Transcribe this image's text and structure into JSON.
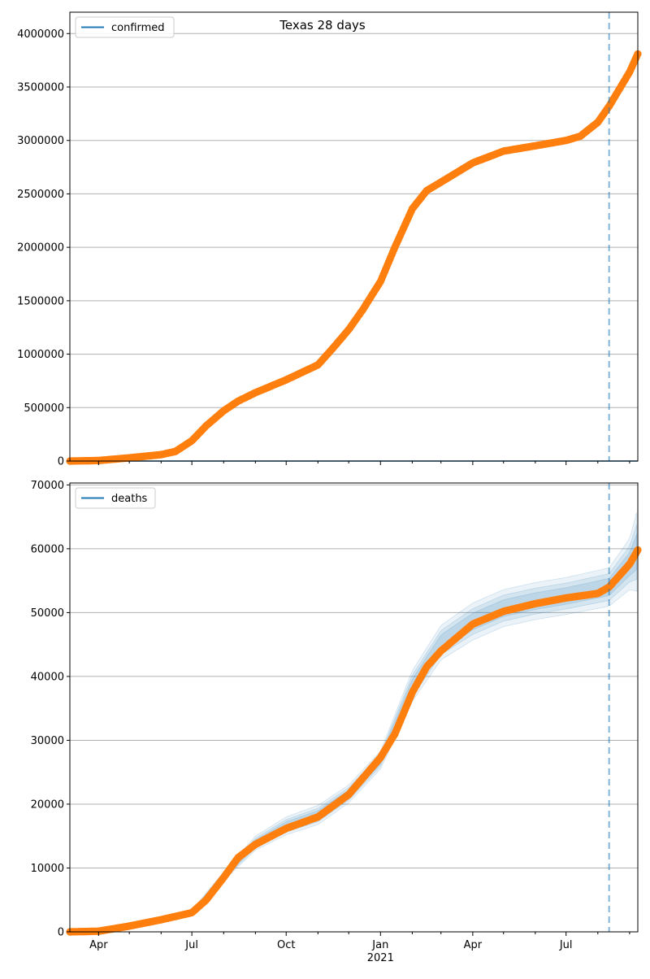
{
  "figure_title": "Texas 28 days",
  "colors": {
    "observed": "#ff7f0e",
    "model_line": "#1f77b4",
    "band": "#1f77b4",
    "grid": "#b0b0b0",
    "cutoff": "#1f77b4"
  },
  "x_axis": {
    "tick_labels": [
      "Apr",
      "Jul",
      "Oct",
      "Jan",
      "Apr",
      "Jul"
    ],
    "tick_dates": [
      "2020-04-01",
      "2020-07-01",
      "2020-10-01",
      "2021-01-01",
      "2021-04-01",
      "2021-07-01"
    ],
    "year_label": "2021",
    "range": [
      "2020-03-04",
      "2021-09-09"
    ],
    "cutoff_date": "2021-08-12"
  },
  "chart_data": [
    {
      "type": "line",
      "legend": "confirmed",
      "legend_position": "top-left",
      "grid": "horizontal",
      "ylim": [
        0,
        4200000
      ],
      "yticks": [
        "0",
        "500000",
        "1000000",
        "1500000",
        "2000000",
        "2500000",
        "3000000",
        "3500000",
        "4000000"
      ],
      "ytick_values": [
        0,
        500000,
        1000000,
        1500000,
        2000000,
        2500000,
        3000000,
        3500000,
        4000000
      ],
      "observed": {
        "x": [
          "2020-03-04",
          "2020-04-01",
          "2020-05-01",
          "2020-06-01",
          "2020-06-15",
          "2020-07-01",
          "2020-07-15",
          "2020-08-01",
          "2020-08-15",
          "2020-09-01",
          "2020-10-01",
          "2020-11-01",
          "2020-11-15",
          "2020-12-01",
          "2020-12-15",
          "2021-01-01",
          "2021-01-15",
          "2021-02-01",
          "2021-02-15",
          "2021-03-01",
          "2021-04-01",
          "2021-05-01",
          "2021-06-01",
          "2021-07-01",
          "2021-07-15",
          "2021-08-01",
          "2021-08-12",
          "2021-09-01",
          "2021-09-09"
        ],
        "y": [
          0,
          5000,
          30000,
          60000,
          90000,
          190000,
          330000,
          470000,
          560000,
          640000,
          760000,
          900000,
          1050000,
          1230000,
          1420000,
          1680000,
          2000000,
          2360000,
          2530000,
          2610000,
          2790000,
          2900000,
          2950000,
          3000000,
          3040000,
          3170000,
          3320000,
          3640000,
          3810000
        ]
      },
      "model": {
        "x": [
          "2020-03-04",
          "2021-09-09"
        ],
        "y": [
          0,
          0
        ]
      }
    },
    {
      "type": "line",
      "legend": "deaths",
      "legend_position": "top-left",
      "grid": "horizontal",
      "ylim": [
        0,
        70300
      ],
      "yticks": [
        "0",
        "10000",
        "20000",
        "30000",
        "40000",
        "50000",
        "60000",
        "70000"
      ],
      "ytick_values": [
        0,
        10000,
        20000,
        30000,
        40000,
        50000,
        60000,
        70000
      ],
      "observed": {
        "x": [
          "2020-03-04",
          "2020-04-01",
          "2020-05-01",
          "2020-06-01",
          "2020-07-01",
          "2020-07-15",
          "2020-08-01",
          "2020-08-15",
          "2020-09-01",
          "2020-10-01",
          "2020-11-01",
          "2020-12-01",
          "2021-01-01",
          "2021-01-15",
          "2021-02-01",
          "2021-02-15",
          "2021-03-01",
          "2021-04-01",
          "2021-05-01",
          "2021-06-01",
          "2021-07-01",
          "2021-08-01",
          "2021-08-12",
          "2021-09-01",
          "2021-09-09"
        ],
        "y": [
          0,
          100,
          900,
          1900,
          3000,
          5000,
          8500,
          11600,
          13700,
          16200,
          18000,
          21500,
          27300,
          31000,
          37500,
          41500,
          44000,
          48200,
          50200,
          51400,
          52300,
          53000,
          54000,
          57600,
          59800
        ]
      },
      "band": {
        "x": [
          "2020-06-15",
          "2020-07-01",
          "2020-08-01",
          "2020-09-01",
          "2020-10-01",
          "2020-11-01",
          "2020-12-01",
          "2021-01-01",
          "2021-02-01",
          "2021-03-01",
          "2021-04-01",
          "2021-05-01",
          "2021-06-01",
          "2021-07-01",
          "2021-08-12",
          "2021-09-01",
          "2021-09-09"
        ],
        "mid": [
          2400,
          3000,
          8700,
          13900,
          16600,
          18300,
          21600,
          26900,
          38500,
          45300,
          48600,
          50700,
          51800,
          52600,
          54000,
          57600,
          59800
        ],
        "spread": [
          200,
          400,
          700,
          1100,
          1400,
          1500,
          1400,
          1400,
          2400,
          2700,
          2900,
          2900,
          2900,
          2900,
          3000,
          4000,
          6500
        ]
      }
    }
  ]
}
